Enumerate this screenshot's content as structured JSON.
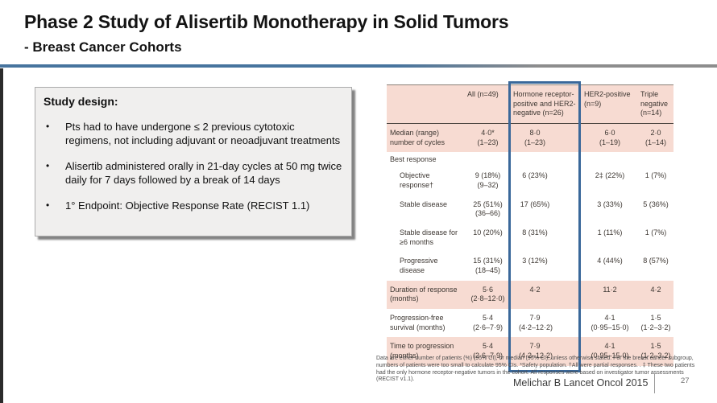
{
  "slide": {
    "title": "Phase 2 Study of Alisertib Monotherapy in Solid Tumors",
    "subtitle": "- Breast Cancer Cohorts",
    "source": "Melichar B Lancet Oncol 2015",
    "page_number": "27"
  },
  "study_design": {
    "heading": "Study design:",
    "bullet_glyph": "•",
    "bullets": [
      "Pts had to have undergone ≤ 2 previous cytotoxic regimens, not including adjuvant or neoadjuvant treatments",
      "Alisertib administered orally in 21-day cycles at 50 mg twice daily for 7 days followed by a break of 14 days",
      "1° Endpoint: Objective Response Rate (RECIST 1.1)"
    ]
  },
  "table": {
    "columns": [
      "",
      "All (n=49)",
      "Hormone receptor-positive and HER2-negative (n=26)",
      "HER2-positive (n=9)",
      "Triple negative (n=14)"
    ],
    "highlighted_column": "Hormone receptor-positive and HER2-negative (n=26)",
    "rows": [
      {
        "label": "Median (range) number of cycles",
        "bg": "pink",
        "cells": [
          [
            "4·0*",
            "(1–23)"
          ],
          [
            "8·0",
            "(1–23)"
          ],
          [
            "6·0",
            "(1–19)"
          ],
          [
            "2·0",
            "(1–14)"
          ]
        ]
      },
      {
        "label": "Best response",
        "bg": "white",
        "section": true,
        "cells": [
          [],
          [],
          [],
          []
        ]
      },
      {
        "label": "Objective response†",
        "bg": "white",
        "indent": true,
        "cells": [
          [
            "9 (18%)",
            "(9–32)"
          ],
          [
            "6 (23%)"
          ],
          [
            "2‡ (22%)"
          ],
          [
            "1 (7%)"
          ]
        ]
      },
      {
        "label": "Stable disease",
        "bg": "white",
        "indent": true,
        "cells": [
          [
            "25 (51%)",
            "(36–66)"
          ],
          [
            "17 (65%)"
          ],
          [
            "3 (33%)"
          ],
          [
            "5 (36%)"
          ]
        ]
      },
      {
        "label": "Stable disease for ≥6 months",
        "bg": "white",
        "indent": true,
        "cells": [
          [
            "10 (20%)"
          ],
          [
            "8 (31%)"
          ],
          [
            "1 (11%)"
          ],
          [
            "1 (7%)"
          ]
        ]
      },
      {
        "label": "Progressive disease",
        "bg": "white",
        "indent": true,
        "cells": [
          [
            "15 (31%)",
            "(18–45)"
          ],
          [
            "3 (12%)"
          ],
          [
            "4 (44%)"
          ],
          [
            "8 (57%)"
          ]
        ]
      },
      {
        "label": "Duration of response (months)",
        "bg": "pink",
        "cells": [
          [
            "5·6",
            "(2·8–12·0)"
          ],
          [
            "4·2"
          ],
          [
            "11·2"
          ],
          [
            "4·2"
          ]
        ]
      },
      {
        "label": "Progression-free survival (months)",
        "bg": "white",
        "cells": [
          [
            "5·4",
            "(2·6–7·9)"
          ],
          [
            "7·9",
            "(4·2–12·2)"
          ],
          [
            "4·1",
            "(0·95–15·0)"
          ],
          [
            "1·5",
            "(1·2–3·2)"
          ]
        ]
      },
      {
        "label": "Time to progression (months)",
        "bg": "pink",
        "cells": [
          [
            "5·4",
            "(2·6–7·9)"
          ],
          [
            "7·9",
            "(4·2–12·2)"
          ],
          [
            "4·1",
            "(0·95–15·0)"
          ],
          [
            "1·5",
            "(1·2–3·2)"
          ]
        ]
      }
    ],
    "colors": {
      "row_pink": "#f7dbd2",
      "highlight_border": "#3a689a"
    }
  },
  "footnote_lines": [
    "Data are either number of patients (%) (95% CI), or median (95% CI), unless otherwise stated. For the breast cancer subgroup,",
    "numbers of patients were too small to calculate 95% CIs. *Safety population. †All were partial responses. . ‡ These two patients",
    "had the only hormone receptor-negative tumors in the cohort. All responses were based on investigator tumor assessments",
    "(RECIST v1.1)."
  ],
  "colors": {
    "title_rule_blue": "#47749e",
    "title_rule_gray": "#8d8d8d"
  }
}
